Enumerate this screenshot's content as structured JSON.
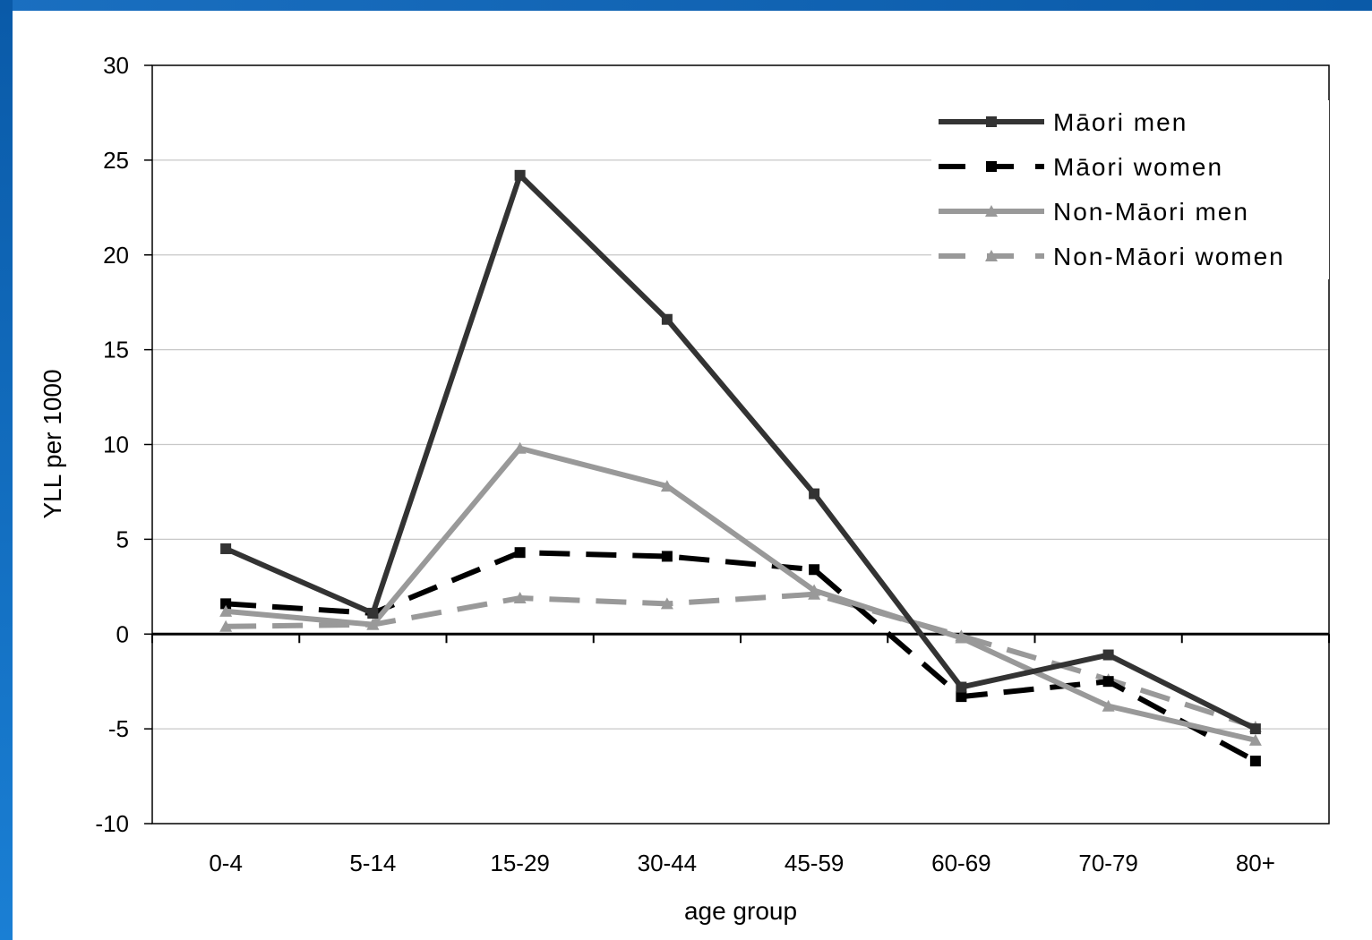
{
  "chart_data": {
    "type": "line",
    "xlabel": "age group",
    "ylabel": "YLL per 1000",
    "categories": [
      "0-4",
      "5-14",
      "15-29",
      "30-44",
      "45-59",
      "60-69",
      "70-79",
      "80+"
    ],
    "ylim": [
      -10,
      30
    ],
    "yticks": [
      30,
      25,
      20,
      15,
      10,
      5,
      0,
      -5,
      -10
    ],
    "grid": "horizontal",
    "legend_position": "top-right",
    "series": [
      {
        "name": "Māori men",
        "values": [
          4.5,
          1.1,
          24.2,
          16.6,
          7.4,
          -2.8,
          -1.1,
          -5.0
        ],
        "color": "#333333",
        "dash": "solid",
        "marker": "square"
      },
      {
        "name": "Māori women",
        "values": [
          1.6,
          1.1,
          4.3,
          4.1,
          3.4,
          -3.3,
          -2.5,
          -6.7
        ],
        "color": "#000000",
        "dash": "dashed",
        "marker": "square"
      },
      {
        "name": "Non-Māori men",
        "values": [
          1.2,
          0.5,
          9.8,
          7.8,
          2.3,
          -0.2,
          -3.8,
          -5.6
        ],
        "color": "#999999",
        "dash": "solid",
        "marker": "triangle"
      },
      {
        "name": "Non-Māori women",
        "values": [
          0.4,
          0.5,
          1.9,
          1.6,
          2.1,
          -0.1,
          -2.4,
          -4.9
        ],
        "color": "#999999",
        "dash": "dashed",
        "marker": "triangle"
      }
    ]
  }
}
